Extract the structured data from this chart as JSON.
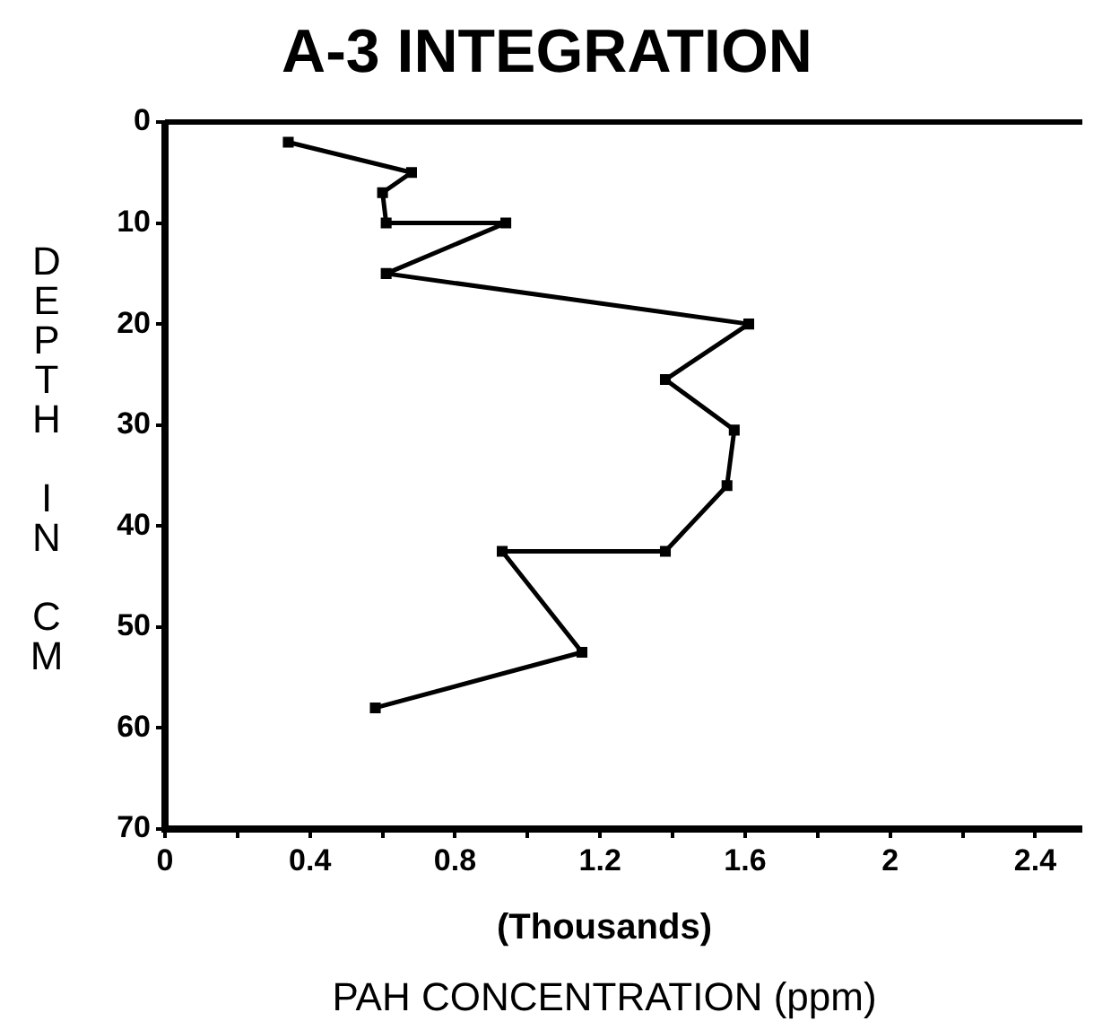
{
  "chart_data": {
    "type": "line",
    "title": "A-3 INTEGRATION",
    "xlabel": "PAH CONCENTRATION (ppm)",
    "ylabel": "DEPTH IN CM",
    "annotations": [
      "(Thousands)"
    ],
    "series": [
      {
        "color": "#000000",
        "x": [
          0.34,
          0.68,
          0.6,
          0.61,
          0.94,
          0.61,
          1.61,
          1.38,
          1.57,
          1.55,
          1.38,
          0.93,
          1.15,
          0.58
        ],
        "values": [
          2,
          5,
          7,
          10,
          10,
          15,
          20,
          25.5,
          30.5,
          36,
          42.5,
          42.5,
          52.5,
          58
        ]
      }
    ],
    "xlim": [
      0,
      2.53
    ],
    "xticks": [
      0,
      {
        "value": 0.2,
        "label": null
      },
      {
        "value": 0.4,
        "label": "0.4"
      },
      {
        "value": 0.6,
        "label": null
      },
      {
        "value": 0.8,
        "label": "0.8"
      },
      {
        "value": 1,
        "label": null
      },
      {
        "value": 1.2,
        "label": "1.2"
      },
      {
        "value": 1.4,
        "label": null
      },
      {
        "value": 1.6,
        "label": "1.6"
      },
      {
        "value": 1.8,
        "label": null
      },
      2,
      {
        "value": 2.2,
        "label": null
      },
      {
        "value": 2.4,
        "label": "2.4"
      }
    ],
    "ylim": [
      70,
      0
    ],
    "yticks": [
      0,
      10,
      20,
      30,
      40,
      50,
      60,
      70
    ],
    "grid": false,
    "legend": false,
    "marker": "square",
    "line_style": "solid"
  }
}
